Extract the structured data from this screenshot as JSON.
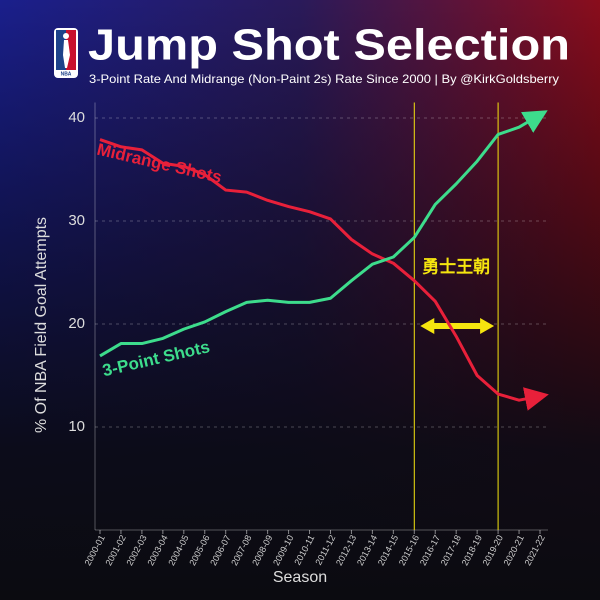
{
  "chart_data": {
    "type": "line",
    "title": "Jump Shot Selection",
    "subtitle": "3-Point Rate And Midrange (Non-Paint 2s) Rate Since 2000 | By @KirkGoldsberry",
    "logo_text": "NBA",
    "x_label": "Season",
    "y_label": "% Of NBA Field Goal Attempts",
    "categories": [
      "2000-01",
      "2001-02",
      "2002-03",
      "2003-04",
      "2004-05",
      "2005-06",
      "2006-07",
      "2007-08",
      "2008-09",
      "2009-10",
      "2010-11",
      "2011-12",
      "2012-13",
      "2013-14",
      "2014-15",
      "2015-16",
      "2016-17",
      "2017-18",
      "2018-19",
      "2019-20",
      "2020-21",
      "2021-22"
    ],
    "series": [
      {
        "name": "Midrange Shots",
        "color": "#e8203a",
        "values": [
          37.9,
          37.2,
          36.9,
          35.6,
          35.3,
          34.5,
          33.0,
          32.8,
          32.0,
          31.4,
          30.9,
          30.2,
          28.2,
          26.8,
          25.9,
          24.2,
          22.2,
          18.8,
          15.0,
          13.2,
          12.6,
          13.0
        ]
      },
      {
        "name": "3-Point Shots",
        "color": "#3ddc8c",
        "values": [
          16.9,
          18.1,
          18.1,
          18.6,
          19.5,
          20.2,
          21.2,
          22.1,
          22.3,
          22.1,
          22.1,
          22.5,
          24.2,
          25.8,
          26.5,
          28.4,
          31.6,
          33.6,
          35.8,
          38.4,
          39.1,
          40.3
        ]
      }
    ],
    "highlight": {
      "label": "勇士王朝",
      "from": "2015-16",
      "to": "2019-20",
      "color": "#f5e50f"
    },
    "ylim": [
      0,
      41.5
    ],
    "yticks": [
      10,
      20,
      30,
      40
    ],
    "grid": true
  }
}
